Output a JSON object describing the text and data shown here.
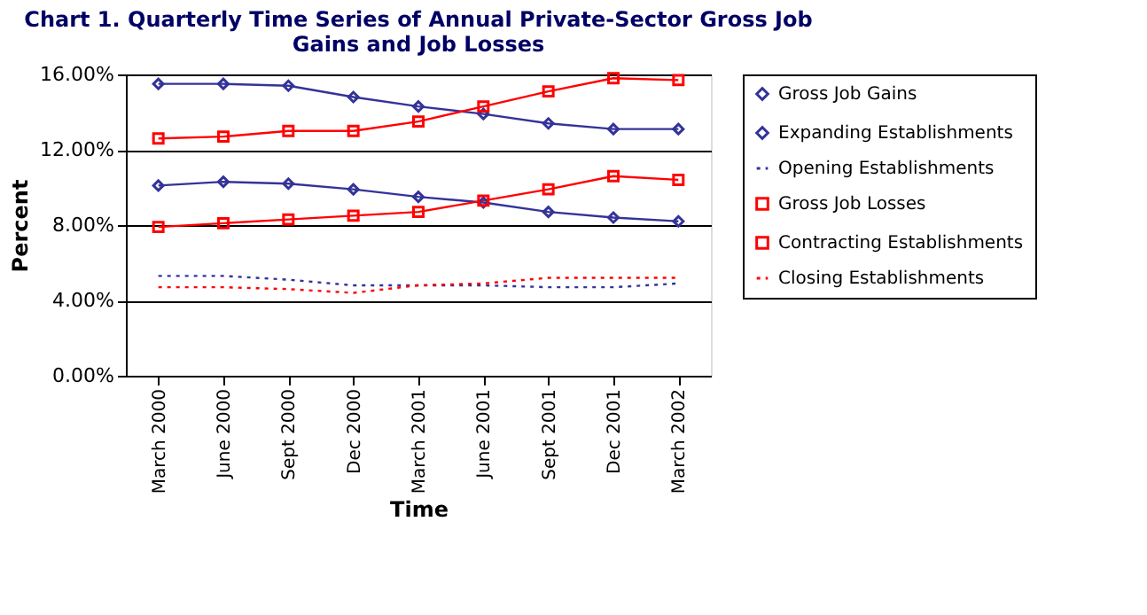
{
  "chart_data": {
    "type": "line",
    "title": "Chart 1. Quarterly Time Series of Annual Private-Sector Gross Job Gains and Job Losses",
    "xlabel": "Time",
    "ylabel": "Percent",
    "categories": [
      "March 2000",
      "June 2000",
      "Sept 2000",
      "Dec 2000",
      "March 2001",
      "June 2001",
      "Sept 2001",
      "Dec 2001",
      "March 2002"
    ],
    "ylim": [
      0,
      16
    ],
    "yticks": [
      {
        "value": 0,
        "label": "0.00%"
      },
      {
        "value": 4,
        "label": "4.00%"
      },
      {
        "value": 8,
        "label": "8.00%"
      },
      {
        "value": 12,
        "label": "12.00%"
      },
      {
        "value": 16,
        "label": "16.00%"
      }
    ],
    "grid": "y",
    "legend": "right",
    "series": [
      {
        "name": "Gross Job Gains",
        "color": "#333399",
        "marker": "diamond",
        "line_style": "solid",
        "values": [
          15.5,
          15.5,
          15.4,
          14.8,
          14.3,
          13.9,
          13.4,
          13.1,
          13.1
        ]
      },
      {
        "name": "Expanding Establishments",
        "color": "#333399",
        "marker": "diamond",
        "line_style": "solid",
        "values": [
          10.1,
          10.3,
          10.2,
          9.9,
          9.5,
          9.2,
          8.7,
          8.4,
          8.2
        ]
      },
      {
        "name": "Opening Establishments",
        "color": "#333399",
        "marker": "none",
        "line_style": "dotted",
        "values": [
          5.3,
          5.3,
          5.1,
          4.8,
          4.8,
          4.8,
          4.7,
          4.7,
          4.9
        ]
      },
      {
        "name": "Gross Job Losses",
        "color": "#ff0000",
        "marker": "square",
        "line_style": "solid",
        "values": [
          12.6,
          12.7,
          13.0,
          13.0,
          13.5,
          14.3,
          15.1,
          15.8,
          15.7
        ]
      },
      {
        "name": "Contracting Establishments",
        "color": "#ff0000",
        "marker": "square",
        "line_style": "solid",
        "values": [
          7.9,
          8.1,
          8.3,
          8.5,
          8.7,
          9.3,
          9.9,
          10.6,
          10.4
        ]
      },
      {
        "name": "Closing Establishments",
        "color": "#ff0000",
        "marker": "none",
        "line_style": "dotted",
        "values": [
          4.7,
          4.7,
          4.6,
          4.4,
          4.8,
          4.9,
          5.2,
          5.2,
          5.2
        ]
      }
    ]
  }
}
